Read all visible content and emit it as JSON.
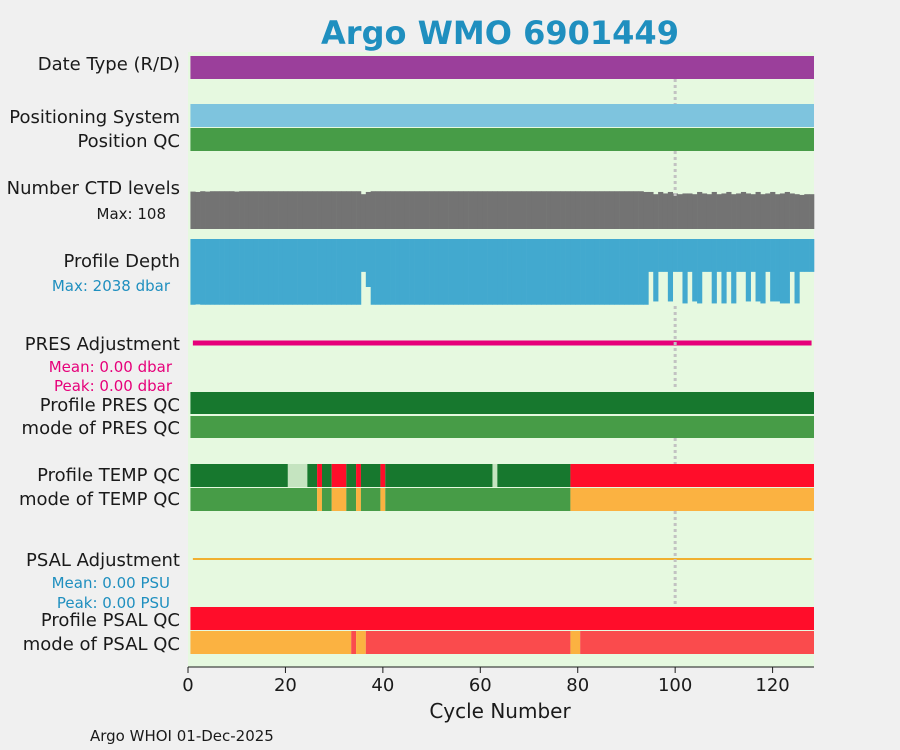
{
  "title": "Argo WMO 6901449",
  "footer": "Argo WHOI 01-Dec-2025",
  "xlabel": "Cycle Number",
  "colors": {
    "title": "#1f8fbf",
    "panel_bg": "#e6f9e0",
    "date_type": "#9b3f9b",
    "positioning_system": "#7ec4de",
    "position_qc": "#479c47",
    "ctd_levels": "#737373",
    "profile_depth": "#42a9cf",
    "pres_adjustment": "#e6007a",
    "psal_adjustment": "#f0b030",
    "qc_dark_green": "#17782e",
    "qc_green": "#479c47",
    "qc_light_green": "#c5e4c0",
    "qc_red": "#ff0d2a",
    "qc_orange": "#fbb241",
    "qc_light_red": "#fa4b4d",
    "marker_line": "#c2c2c2",
    "ctd_max_text": "#1a1a1a",
    "depth_max_text": "#1f8fbf",
    "pres_stats_text": "#e6007a",
    "psal_stats_text": "#1f8fbf"
  },
  "rows": {
    "date_type": "Date Type (R/D)",
    "positioning_system": "Positioning System",
    "position_qc": "Position QC",
    "ctd_levels": "Number CTD levels",
    "ctd_max": "Max: 108",
    "profile_depth": "Profile Depth",
    "depth_max": "Max: 2038 dbar",
    "pres_adjustment": "PRES Adjustment",
    "pres_mean": "Mean: 0.00 dbar",
    "pres_peak": "Peak: 0.00 dbar",
    "profile_pres_qc": "Profile PRES QC",
    "mode_pres_qc": "mode of PRES QC",
    "profile_temp_qc": "Profile TEMP QC",
    "mode_temp_qc": "mode of TEMP QC",
    "psal_adjustment": "PSAL Adjustment",
    "psal_mean": "Mean: 0.00 PSU",
    "psal_peak": "Peak: 0.00 PSU",
    "profile_psal_qc": "Profile PSAL QC",
    "mode_psal_qc": "mode of PSAL QC"
  },
  "chart_data": {
    "type": "bar",
    "title": "Argo WMO 6901449",
    "xlabel": "Cycle Number",
    "ylabel": "",
    "xlim": [
      0,
      128.5
    ],
    "xticks": [
      0,
      20,
      40,
      60,
      80,
      100,
      120
    ],
    "marker_cycle": 100,
    "cycles": [
      1,
      128
    ],
    "ctd_levels": {
      "max": 108,
      "default": 102,
      "values": [
        {
          "from": 1,
          "to": 1,
          "value": 101
        },
        {
          "from": 2,
          "to": 2,
          "value": 100
        },
        {
          "from": 4,
          "to": 4,
          "value": 101
        },
        {
          "from": 10,
          "to": 10,
          "value": 101
        },
        {
          "from": 36,
          "to": 36,
          "value": 94
        },
        {
          "from": 37,
          "to": 37,
          "value": 100
        },
        {
          "from": 94,
          "to": 95,
          "value": 100
        },
        {
          "from": 96,
          "to": 96,
          "value": 94
        },
        {
          "from": 97,
          "to": 97,
          "value": 100
        },
        {
          "from": 98,
          "to": 98,
          "value": 96
        },
        {
          "from": 99,
          "to": 99,
          "value": 100
        },
        {
          "from": 100,
          "to": 100,
          "value": 96
        },
        {
          "from": 101,
          "to": 101,
          "value": 94
        },
        {
          "from": 102,
          "to": 103,
          "value": 96
        },
        {
          "from": 104,
          "to": 104,
          "value": 94
        },
        {
          "from": 105,
          "to": 105,
          "value": 100
        },
        {
          "from": 106,
          "to": 106,
          "value": 96
        },
        {
          "from": 107,
          "to": 107,
          "value": 94
        },
        {
          "from": 108,
          "to": 108,
          "value": 100
        },
        {
          "from": 109,
          "to": 109,
          "value": 94
        },
        {
          "from": 110,
          "to": 110,
          "value": 96
        },
        {
          "from": 111,
          "to": 111,
          "value": 100
        },
        {
          "from": 112,
          "to": 112,
          "value": 94
        },
        {
          "from": 113,
          "to": 113,
          "value": 96
        },
        {
          "from": 114,
          "to": 114,
          "value": 100
        },
        {
          "from": 115,
          "to": 115,
          "value": 96
        },
        {
          "from": 116,
          "to": 116,
          "value": 94
        },
        {
          "from": 117,
          "to": 117,
          "value": 100
        },
        {
          "from": 118,
          "to": 118,
          "value": 94
        },
        {
          "from": 119,
          "to": 119,
          "value": 96
        },
        {
          "from": 120,
          "to": 120,
          "value": 100
        },
        {
          "from": 121,
          "to": 121,
          "value": 94
        },
        {
          "from": 122,
          "to": 122,
          "value": 96
        },
        {
          "from": 123,
          "to": 123,
          "value": 100
        },
        {
          "from": 124,
          "to": 124,
          "value": 96
        },
        {
          "from": 125,
          "to": 125,
          "value": 94
        },
        {
          "from": 126,
          "to": 126,
          "value": 92
        },
        {
          "from": 127,
          "to": 128,
          "value": 94
        }
      ]
    },
    "profile_depth": {
      "max": 2038,
      "default": 2000,
      "values": [
        {
          "from": 2,
          "to": 2,
          "value": 1990
        },
        {
          "from": 36,
          "to": 36,
          "value": 1000
        },
        {
          "from": 37,
          "to": 37,
          "value": 1460
        },
        {
          "from": 95,
          "to": 95,
          "value": 1000
        },
        {
          "from": 96,
          "to": 96,
          "value": 1900
        },
        {
          "from": 97,
          "to": 97,
          "value": 1000
        },
        {
          "from": 98,
          "to": 98,
          "value": 1000
        },
        {
          "from": 99,
          "to": 99,
          "value": 1900
        },
        {
          "from": 100,
          "to": 100,
          "value": 1000
        },
        {
          "from": 101,
          "to": 101,
          "value": 1000
        },
        {
          "from": 102,
          "to": 102,
          "value": 1960
        },
        {
          "from": 103,
          "to": 103,
          "value": 1000
        },
        {
          "from": 104,
          "to": 104,
          "value": 1900
        },
        {
          "from": 105,
          "to": 105,
          "value": 1960
        },
        {
          "from": 106,
          "to": 106,
          "value": 1000
        },
        {
          "from": 107,
          "to": 107,
          "value": 1000
        },
        {
          "from": 108,
          "to": 108,
          "value": 1960
        },
        {
          "from": 109,
          "to": 109,
          "value": 1000
        },
        {
          "from": 110,
          "to": 110,
          "value": 1960
        },
        {
          "from": 111,
          "to": 111,
          "value": 1000
        },
        {
          "from": 112,
          "to": 112,
          "value": 1960
        },
        {
          "from": 113,
          "to": 113,
          "value": 1000
        },
        {
          "from": 114,
          "to": 114,
          "value": 1000
        },
        {
          "from": 115,
          "to": 115,
          "value": 1900
        },
        {
          "from": 116,
          "to": 116,
          "value": 1000
        },
        {
          "from": 117,
          "to": 117,
          "value": 1900
        },
        {
          "from": 118,
          "to": 118,
          "value": 1960
        },
        {
          "from": 119,
          "to": 119,
          "value": 1000
        },
        {
          "from": 120,
          "to": 120,
          "value": 1900
        },
        {
          "from": 121,
          "to": 121,
          "value": 1900
        },
        {
          "from": 122,
          "to": 123,
          "value": 1960
        },
        {
          "from": 124,
          "to": 124,
          "value": 1000
        },
        {
          "from": 125,
          "to": 125,
          "value": 1960
        },
        {
          "from": 126,
          "to": 126,
          "value": 1000
        },
        {
          "from": 127,
          "to": 127,
          "value": 1000
        },
        {
          "from": 128,
          "to": 128,
          "value": 1000
        }
      ]
    },
    "pres_adjustment": {
      "mean": 0.0,
      "peak": 0.0
    },
    "psal_adjustment": {
      "mean": 0.0,
      "peak": 0.0
    },
    "qc_rows": {
      "profile_temp_qc": [
        {
          "from": 1,
          "to": 20,
          "color": "qc_dark_green"
        },
        {
          "from": 21,
          "to": 24,
          "color": "qc_light_green"
        },
        {
          "from": 25,
          "to": 26,
          "color": "qc_dark_green"
        },
        {
          "from": 27,
          "to": 27,
          "color": "qc_red"
        },
        {
          "from": 28,
          "to": 29,
          "color": "qc_dark_green"
        },
        {
          "from": 30,
          "to": 32,
          "color": "qc_red"
        },
        {
          "from": 33,
          "to": 34,
          "color": "qc_dark_green"
        },
        {
          "from": 35,
          "to": 35,
          "color": "qc_red"
        },
        {
          "from": 36,
          "to": 39,
          "color": "qc_dark_green"
        },
        {
          "from": 40,
          "to": 40,
          "color": "qc_red"
        },
        {
          "from": 41,
          "to": 62,
          "color": "qc_dark_green"
        },
        {
          "from": 63,
          "to": 63,
          "color": "qc_light_green"
        },
        {
          "from": 64,
          "to": 78,
          "color": "qc_dark_green"
        },
        {
          "from": 79,
          "to": 128,
          "color": "qc_red"
        }
      ],
      "mode_temp_qc": [
        {
          "from": 1,
          "to": 26,
          "color": "qc_green"
        },
        {
          "from": 27,
          "to": 27,
          "color": "qc_orange"
        },
        {
          "from": 28,
          "to": 29,
          "color": "qc_green"
        },
        {
          "from": 30,
          "to": 32,
          "color": "qc_orange"
        },
        {
          "from": 33,
          "to": 34,
          "color": "qc_green"
        },
        {
          "from": 35,
          "to": 35,
          "color": "qc_orange"
        },
        {
          "from": 36,
          "to": 39,
          "color": "qc_green"
        },
        {
          "from": 40,
          "to": 40,
          "color": "qc_orange"
        },
        {
          "from": 41,
          "to": 78,
          "color": "qc_green"
        },
        {
          "from": 79,
          "to": 128,
          "color": "qc_orange"
        }
      ],
      "mode_psal_qc": [
        {
          "from": 1,
          "to": 33,
          "color": "qc_orange"
        },
        {
          "from": 34,
          "to": 34,
          "color": "qc_light_red"
        },
        {
          "from": 35,
          "to": 36,
          "color": "qc_orange"
        },
        {
          "from": 37,
          "to": 78,
          "color": "qc_light_red"
        },
        {
          "from": 79,
          "to": 80,
          "color": "qc_orange"
        },
        {
          "from": 81,
          "to": 128,
          "color": "qc_light_red"
        }
      ]
    }
  }
}
